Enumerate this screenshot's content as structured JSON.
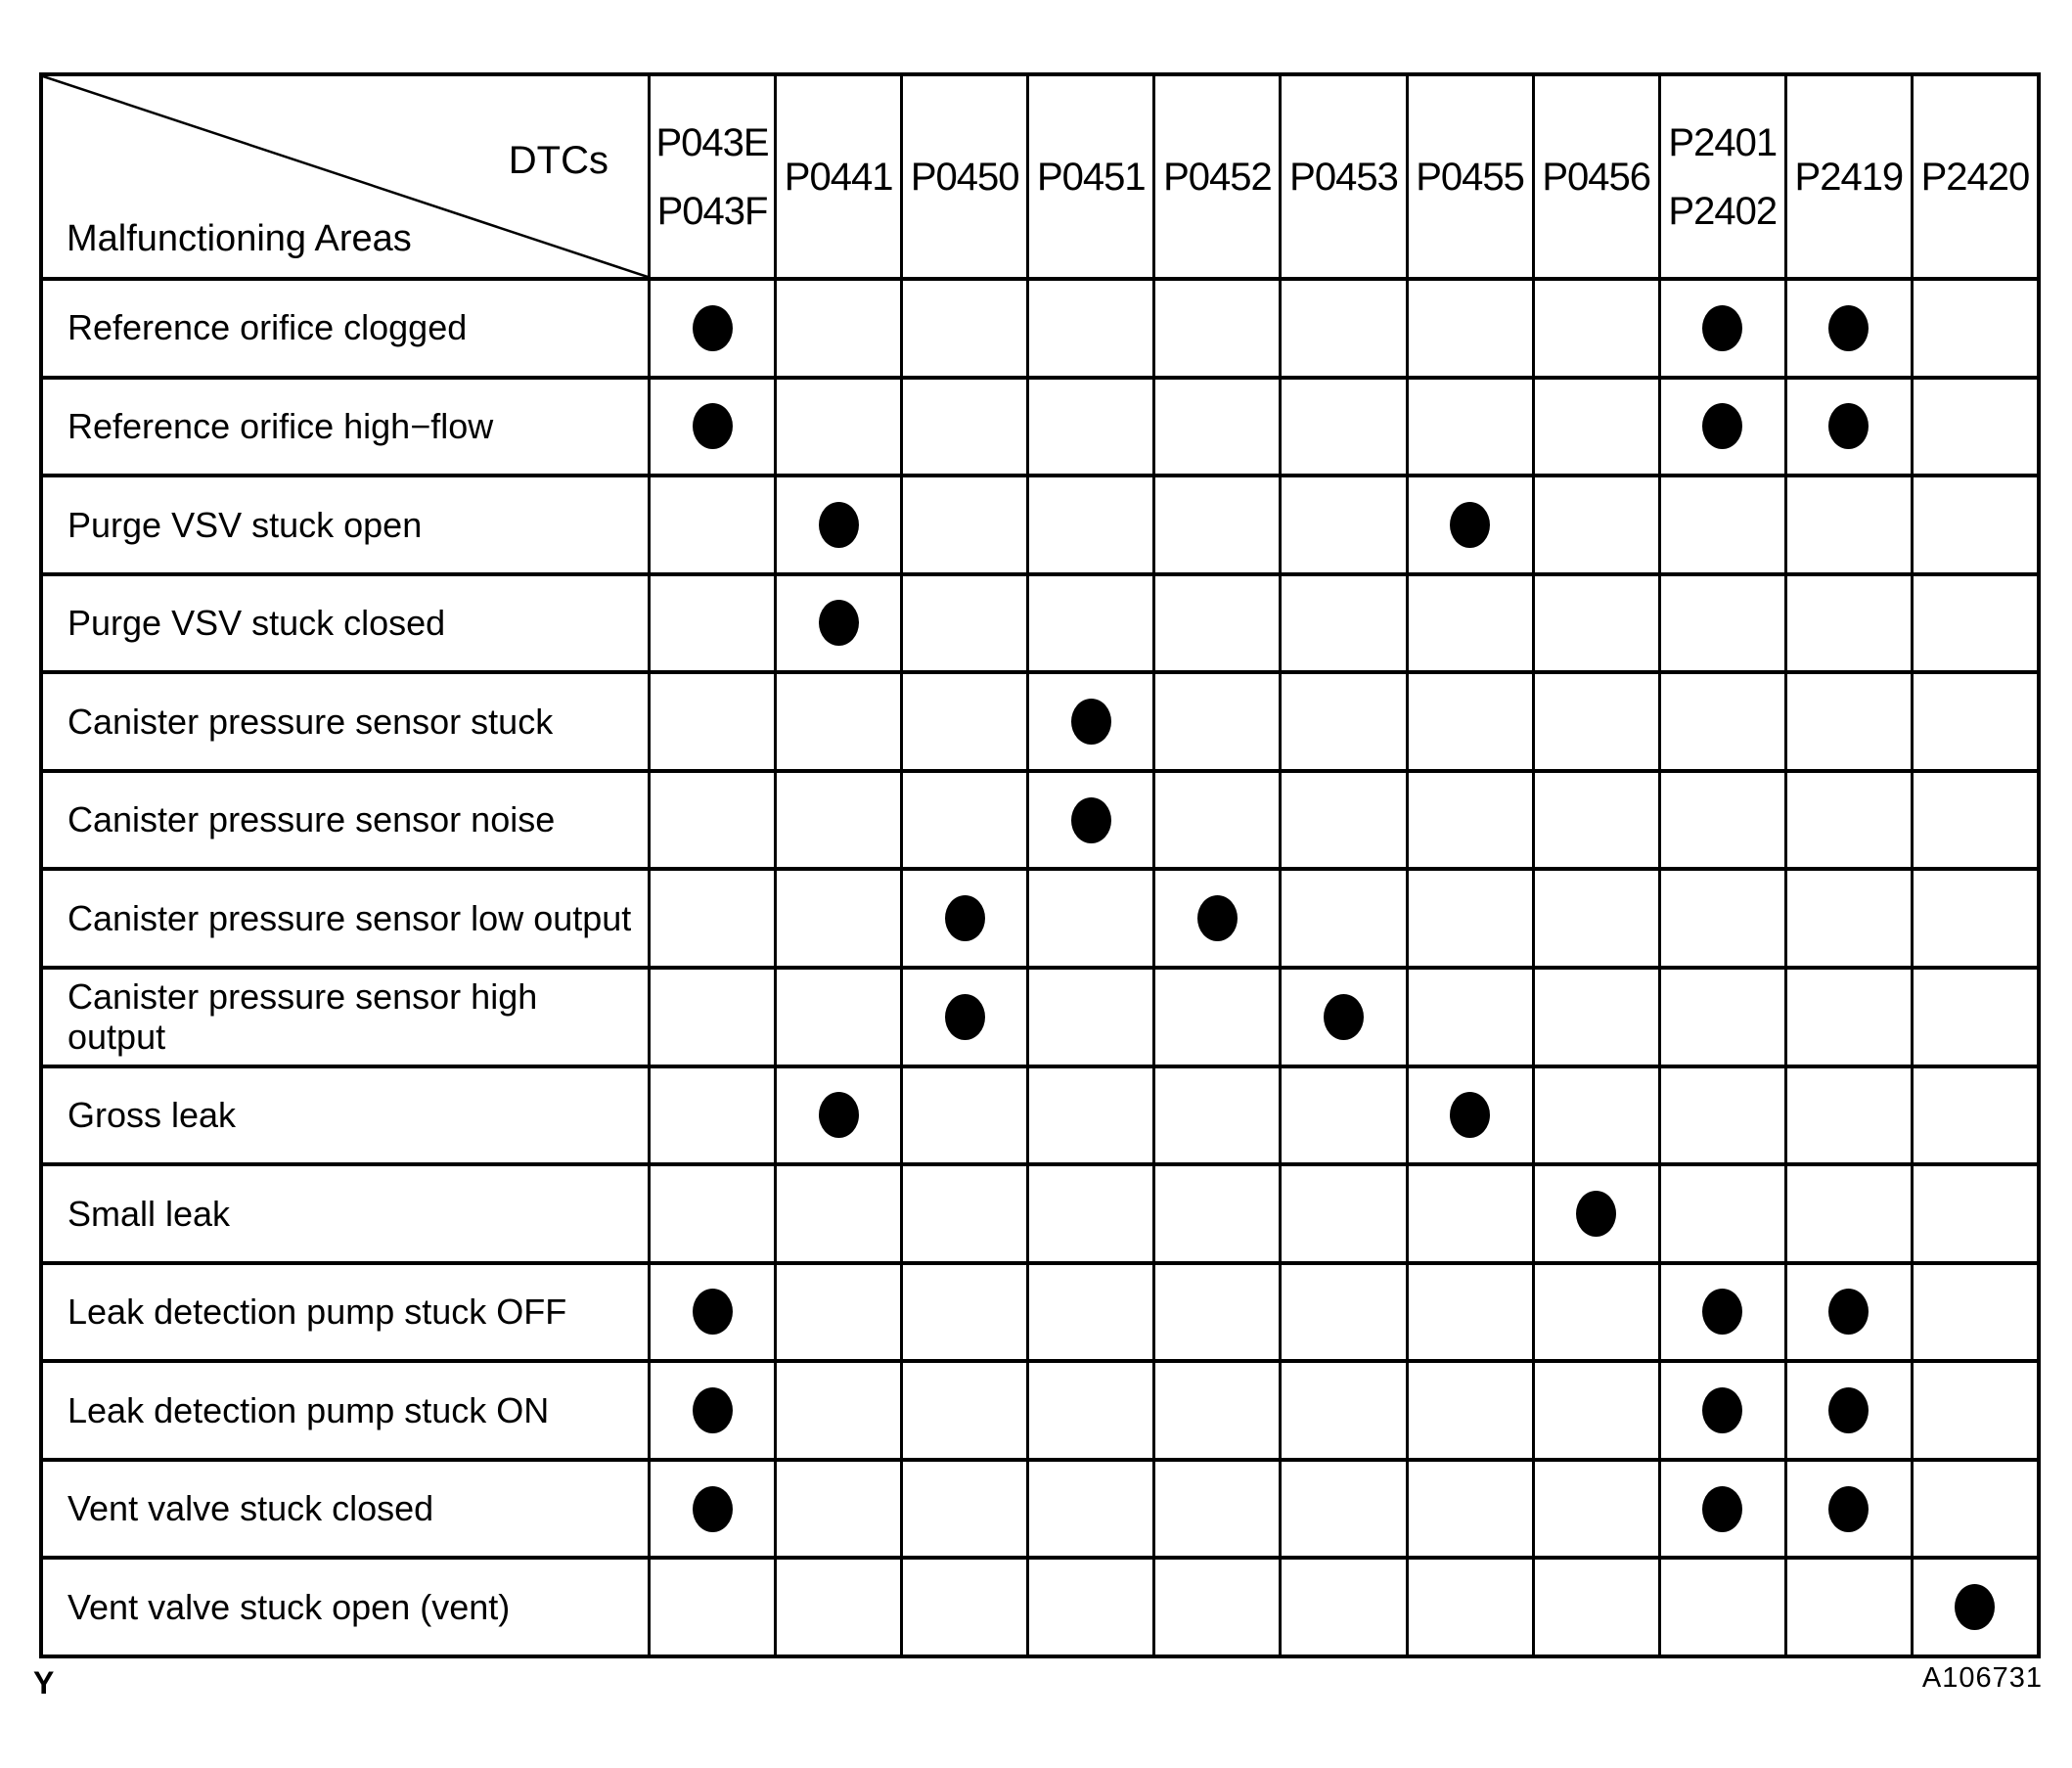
{
  "page": {
    "corner": {
      "dtcs_label": "DTCs",
      "areas_label": "Malfunctioning Areas"
    },
    "columns": [
      {
        "codes": [
          "P043E",
          "P043F"
        ]
      },
      {
        "codes": [
          "P0441"
        ]
      },
      {
        "codes": [
          "P0450"
        ]
      },
      {
        "codes": [
          "P0451"
        ]
      },
      {
        "codes": [
          "P0452"
        ]
      },
      {
        "codes": [
          "P0453"
        ]
      },
      {
        "codes": [
          "P0455"
        ]
      },
      {
        "codes": [
          "P0456"
        ]
      },
      {
        "codes": [
          "P2401",
          "P2402"
        ]
      },
      {
        "codes": [
          "P2419"
        ]
      },
      {
        "codes": [
          "P2420"
        ]
      }
    ],
    "rows": [
      {
        "label": "Reference orifice clogged",
        "marked_columns": [
          0,
          8,
          9
        ]
      },
      {
        "label": "Reference orifice high−flow",
        "marked_columns": [
          0,
          8,
          9
        ]
      },
      {
        "label": "Purge VSV stuck open",
        "marked_columns": [
          1,
          6
        ]
      },
      {
        "label": "Purge VSV stuck closed",
        "marked_columns": [
          1
        ]
      },
      {
        "label": "Canister pressure sensor stuck",
        "marked_columns": [
          3
        ]
      },
      {
        "label": "Canister pressure sensor noise",
        "marked_columns": [
          3
        ]
      },
      {
        "label": "Canister pressure sensor low output",
        "marked_columns": [
          2,
          4
        ]
      },
      {
        "label": "Canister pressure sensor high output",
        "marked_columns": [
          2,
          5
        ]
      },
      {
        "label": "Gross leak",
        "marked_columns": [
          1,
          6
        ]
      },
      {
        "label": "Small leak",
        "marked_columns": [
          7
        ]
      },
      {
        "label": "Leak detection pump stuck OFF",
        "marked_columns": [
          0,
          8,
          9
        ]
      },
      {
        "label": "Leak detection pump stuck ON",
        "marked_columns": [
          0,
          8,
          9
        ]
      },
      {
        "label": "Vent valve stuck closed",
        "marked_columns": [
          0,
          8,
          9
        ]
      },
      {
        "label": "Vent valve stuck open (vent)",
        "marked_columns": [
          10
        ]
      }
    ],
    "mark_glyph": "filled-dot",
    "footer": {
      "page_marker": "Y",
      "figure_code": "A106731"
    },
    "colors": {
      "ink": "#000000",
      "paper": "#ffffff"
    }
  }
}
